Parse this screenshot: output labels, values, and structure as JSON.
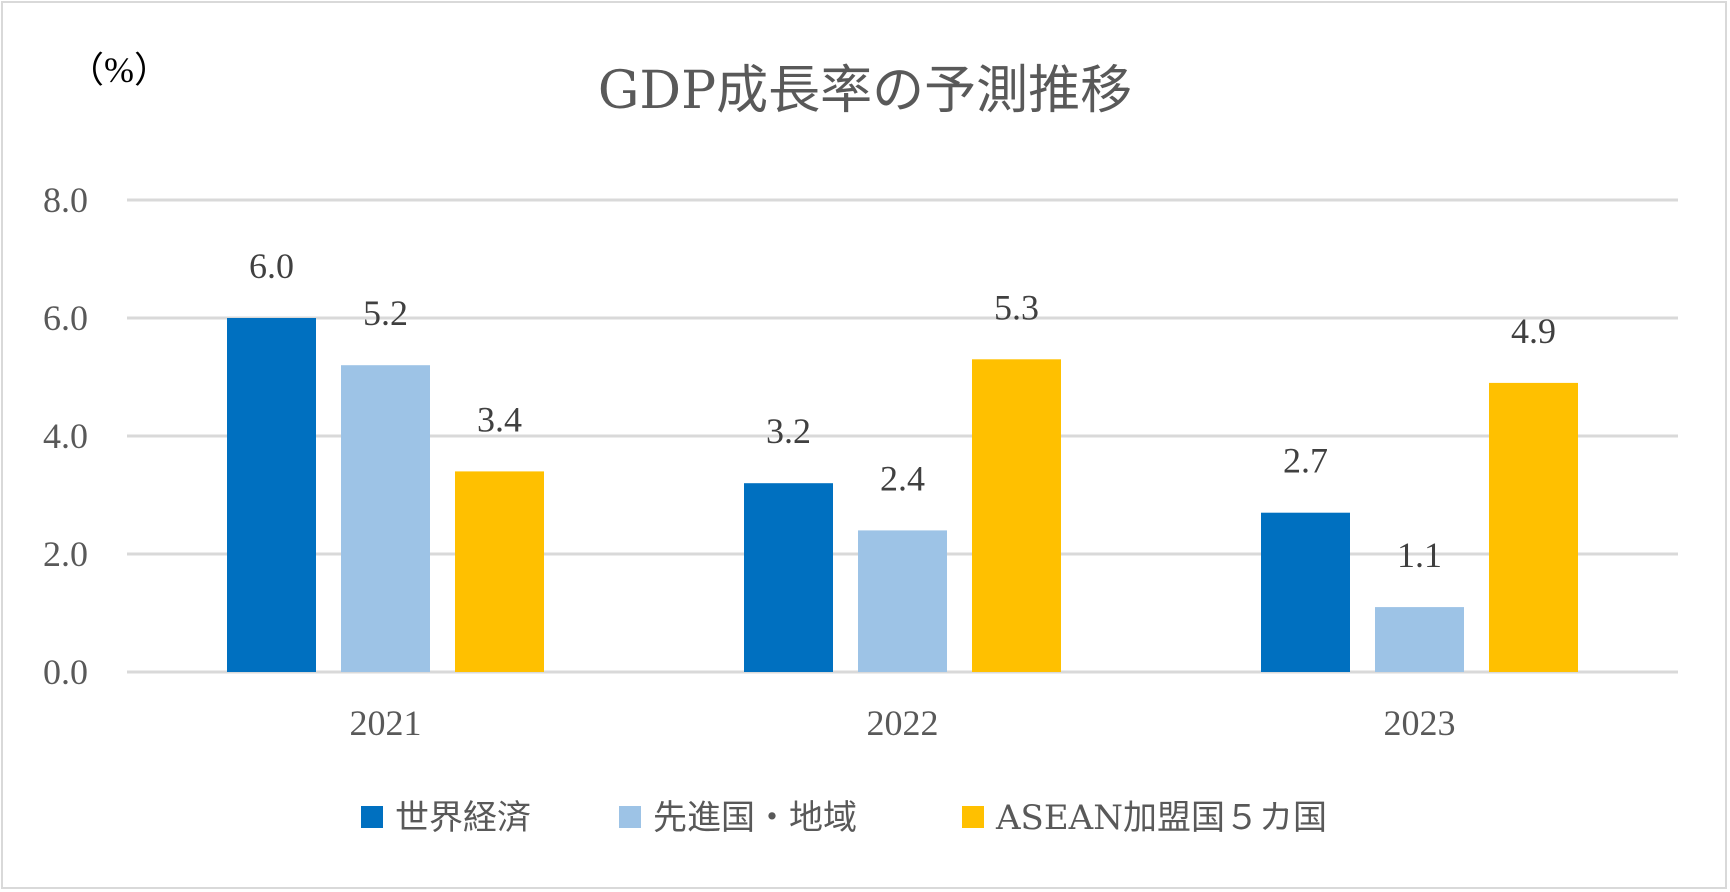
{
  "chart_data": {
    "type": "bar",
    "title": "GDP成長率の予測推移",
    "ylabel": "（%）",
    "xlabel": "",
    "categories": [
      "2021",
      "2022",
      "2023"
    ],
    "series": [
      {
        "name": "世界経済",
        "color": "#0070c0",
        "values": [
          6.0,
          3.2,
          2.7
        ],
        "labels": [
          "6.0",
          "3.2",
          "2.7"
        ]
      },
      {
        "name": "先進国・地域",
        "color": "#9dc3e6",
        "values": [
          5.2,
          2.4,
          1.1
        ],
        "labels": [
          "5.2",
          "2.4",
          "1.1"
        ]
      },
      {
        "name": "ASEAN加盟国５カ国",
        "color": "#ffc000",
        "values": [
          3.4,
          5.3,
          4.9
        ],
        "labels": [
          "3.4",
          "5.3",
          "4.9"
        ]
      }
    ],
    "ylim": [
      0,
      8
    ],
    "yticks": [
      0,
      2,
      4,
      6,
      8
    ],
    "ytick_labels": [
      "0.0",
      "2.0",
      "4.0",
      "6.0",
      "8.0"
    ],
    "grid": true,
    "legend": "bottom",
    "gridline_color": "#d9d9d9"
  }
}
